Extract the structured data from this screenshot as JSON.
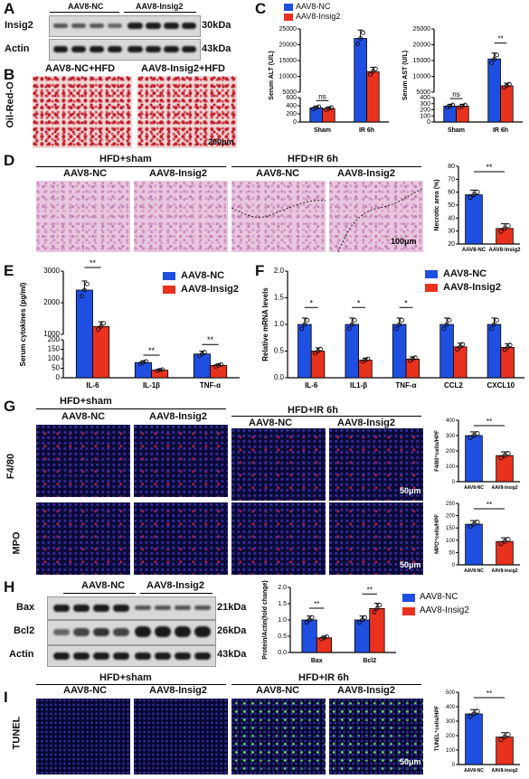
{
  "panels": {
    "A": {
      "letter": "A",
      "groups": [
        "AAV8-NC",
        "AAV8-Insig2"
      ],
      "rows": [
        {
          "name": "Insig2",
          "kda": "30kDa"
        },
        {
          "name": "Actin",
          "kda": "43kDa"
        }
      ]
    },
    "B": {
      "letter": "B",
      "stain": "Oil-Red-O",
      "titles": [
        "AAV8-NC+HFD",
        "AAV8-Insig2+HFD"
      ],
      "scale": "200μm"
    },
    "C": {
      "letter": "C",
      "legend": [
        "AAV8-NC",
        "AAV8-Insig2"
      ]
    },
    "D": {
      "letter": "D",
      "headers": [
        "HFD+sham",
        "HFD+IR 6h"
      ],
      "groups": [
        "AAV8-NC",
        "AAV8-Insig2",
        "AAV8-NC",
        "AAV8-Insig2"
      ],
      "scale": "100μm"
    },
    "E": {
      "letter": "E",
      "legend": [
        "AAV8-NC",
        "AAV8-Insig2"
      ]
    },
    "F": {
      "letter": "F",
      "legend": [
        "AAV8-NC",
        "AAV8-Insig2"
      ]
    },
    "G": {
      "letter": "G",
      "headers": [
        "HFD+sham",
        "HFD+IR 6h"
      ],
      "groups": [
        "AAV8-NC",
        "AAV8-Insig2",
        "AAV8-NC",
        "AAV8-Insig2"
      ],
      "rows": [
        "F4/80",
        "MPO"
      ],
      "scale": "50μm"
    },
    "H": {
      "letter": "H",
      "groups": [
        "AAV8-NC",
        "AAV8-Insig2"
      ],
      "rows": [
        {
          "name": "Bax",
          "kda": "21kDa"
        },
        {
          "name": "Bcl2",
          "kda": "26kDa"
        },
        {
          "name": "Actin",
          "kda": "43kDa"
        }
      ],
      "legend": [
        "AAV8-NC",
        "AAV8-Insig2"
      ]
    },
    "I": {
      "letter": "I",
      "headers": [
        "HFD+sham",
        "HFD+IR 6h"
      ],
      "groups": [
        "AAV8-NC",
        "AAV8-Insig2",
        "AAV8-NC",
        "AAV8-Insig2"
      ],
      "row": "TUNEL",
      "scale": "50μm"
    }
  },
  "colors": {
    "nc": "#1f4fe0",
    "insig2": "#e8321e"
  },
  "chart_data": [
    {
      "id": "C-ALT",
      "type": "bar",
      "ylabel": "Serum ALT (U/L)",
      "categories": [
        "Sham",
        "IR 6h"
      ],
      "series": [
        {
          "name": "AAV8-NC",
          "values": [
            350,
            22000
          ]
        },
        {
          "name": "AAV8-Insig2",
          "values": [
            330,
            11500
          ]
        }
      ],
      "yticks_top": [
        "5000",
        "10000",
        "15000",
        "20000",
        "25000"
      ],
      "yticks_bottom": [
        "0",
        "200",
        "400",
        "600"
      ],
      "sig": [
        "ns",
        "**"
      ]
    },
    {
      "id": "C-AST",
      "type": "bar",
      "ylabel": "Serum AST (U/L)",
      "categories": [
        "Sham",
        "IR 6h"
      ],
      "series": [
        {
          "name": "AAV8-NC",
          "values": [
            260,
            15500
          ]
        },
        {
          "name": "AAV8-Insig2",
          "values": [
            260,
            7000
          ]
        }
      ],
      "yticks_top": [
        "5000",
        "10000",
        "15000",
        "20000",
        "25000"
      ],
      "yticks_bottom": [
        "0",
        "100",
        "200",
        "300",
        "400"
      ],
      "sig": [
        "ns",
        "**"
      ]
    },
    {
      "id": "D",
      "type": "bar",
      "ylabel": "Necrotic area (%)",
      "categories": [
        "AAV8-NC",
        "AAV8-Insig2"
      ],
      "values": [
        58,
        32
      ],
      "yticks": [
        "20",
        "30",
        "40",
        "50",
        "60",
        "70",
        "80"
      ],
      "sig": "**"
    },
    {
      "id": "E",
      "type": "bar",
      "ylabel": "Serum cytokines (pg/ml)",
      "categories": [
        "IL-6",
        "IL-1β",
        "TNF-α"
      ],
      "series": [
        {
          "name": "AAV8-NC",
          "values": [
            2400,
            80,
            125
          ]
        },
        {
          "name": "AAV8-Insig2",
          "values": [
            1250,
            40,
            65
          ]
        }
      ],
      "yticks_top": [
        "1000",
        "2000",
        "3000"
      ],
      "yticks_bottom": [
        "0",
        "50",
        "100",
        "150",
        "200"
      ],
      "sig": [
        "**",
        "**",
        "**"
      ]
    },
    {
      "id": "F",
      "type": "bar",
      "ylabel": "Relative mRNA levels",
      "categories": [
        "IL-6",
        "IL1-β",
        "TNF-α",
        "CCL2",
        "CXCL10"
      ],
      "series": [
        {
          "name": "AAV8-NC",
          "values": [
            1.0,
            1.0,
            1.0,
            1.0,
            1.0
          ]
        },
        {
          "name": "AAV8-Insig2",
          "values": [
            0.5,
            0.33,
            0.35,
            0.58,
            0.57
          ]
        }
      ],
      "yticks": [
        "0.0",
        "0.5",
        "1.0",
        "1.5",
        "2.0"
      ],
      "sig": [
        "*",
        "*",
        "*"
      ]
    },
    {
      "id": "G-F4",
      "type": "bar",
      "ylabel": "F4/80⁺cells/HPF",
      "categories": [
        "AAV8-NC",
        "AAV8-Insig2"
      ],
      "values": [
        300,
        170
      ],
      "yticks": [
        "0",
        "100",
        "200",
        "300",
        "400"
      ],
      "sig": "**"
    },
    {
      "id": "G-MPO",
      "type": "bar",
      "ylabel": "MPO⁺cells/HPF",
      "categories": [
        "AAV8-NC",
        "AAV8-Insig2"
      ],
      "values": [
        165,
        95
      ],
      "yticks": [
        "0",
        "50",
        "100",
        "150",
        "200",
        "250"
      ],
      "sig": "**"
    },
    {
      "id": "H",
      "type": "bar",
      "ylabel": "Protein/Actin(fold change)",
      "categories": [
        "Bax",
        "Bcl2"
      ],
      "series": [
        {
          "name": "AAV8-NC",
          "values": [
            1.0,
            1.0
          ]
        },
        {
          "name": "AAV8-Insig2",
          "values": [
            0.45,
            1.35
          ]
        }
      ],
      "yticks": [
        "0.0",
        "0.5",
        "1.0",
        "1.5",
        "2.0"
      ],
      "sig": [
        "**",
        "**"
      ]
    },
    {
      "id": "I",
      "type": "bar",
      "ylabel": "TUNEL⁺cells/HPF",
      "categories": [
        "AAV8-NC",
        "AAV8-Insig2"
      ],
      "values": [
        350,
        190
      ],
      "yticks": [
        "0",
        "100",
        "200",
        "300",
        "400",
        "500"
      ],
      "sig": "**"
    }
  ]
}
